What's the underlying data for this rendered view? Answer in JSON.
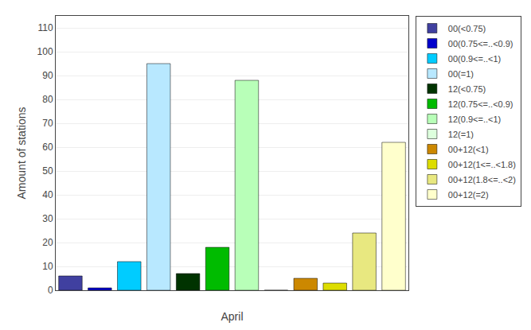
{
  "chart_data": {
    "type": "bar",
    "title": "",
    "xlabel": "April",
    "ylabel": "Amount of stations",
    "categories": [
      "00(<0.75)",
      "00(0.75<=..<0.9)",
      "00(0.9<=..<1)",
      "00(=1)",
      "12(<0.75)",
      "12(0.75<=..<0.9)",
      "12(0.9<=..<1)",
      "12(=1)",
      "00+12(<1)",
      "00+12(1<=..<1.8)",
      "00+12(1.8<=..<2)",
      "00+12(=2)"
    ],
    "values": [
      6,
      1,
      12,
      95,
      7,
      18,
      88,
      0,
      5,
      3,
      24,
      62
    ],
    "colors": [
      "#4040a0",
      "#0000cc",
      "#00ccff",
      "#b8e8ff",
      "#003300",
      "#00bb00",
      "#b8ffb8",
      "#ddffdd",
      "#cc8800",
      "#dddd00",
      "#e8e880",
      "#ffffcc"
    ],
    "ylim": [
      0,
      115
    ],
    "yticks": [
      0,
      10,
      20,
      30,
      40,
      50,
      60,
      70,
      80,
      90,
      100,
      110
    ],
    "grid": true,
    "legend": "upper right",
    "tick_labels": "y"
  }
}
